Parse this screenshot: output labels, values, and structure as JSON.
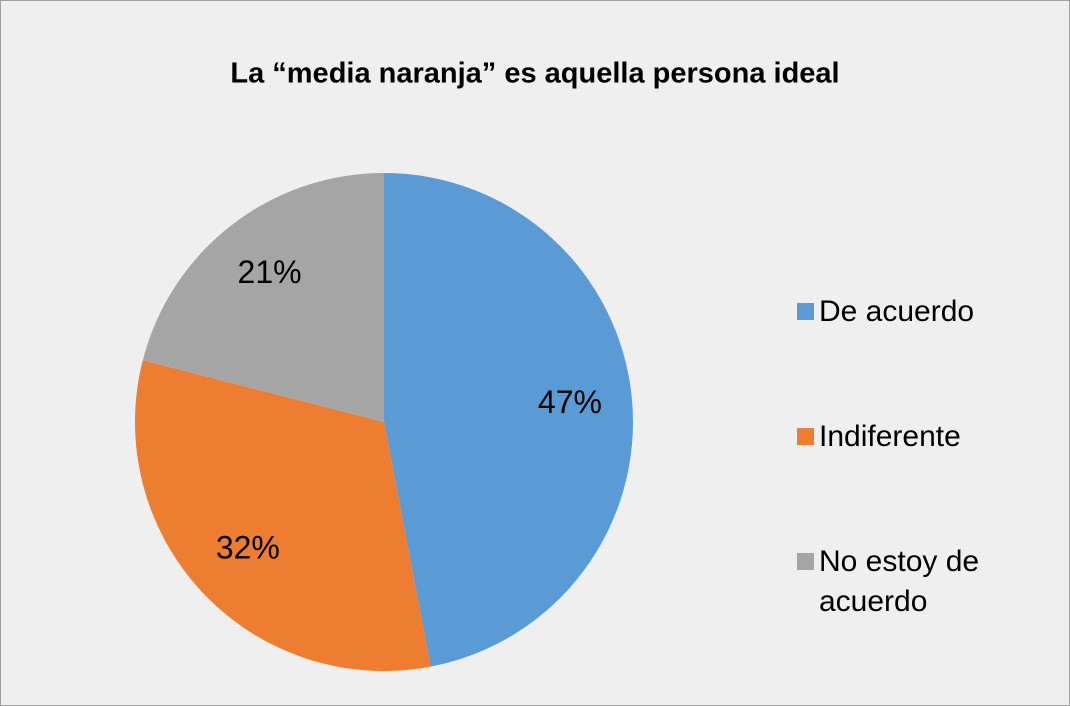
{
  "chart_data": {
    "type": "pie",
    "title": "La “media naranja” es aquella persona ideal",
    "categories": [
      "De acuerdo",
      "Indiferente",
      "No estoy de acuerdo"
    ],
    "values": [
      47,
      32,
      21
    ],
    "value_labels": [
      "47%",
      "32%",
      "21%"
    ],
    "colors": [
      "#5b9bd5",
      "#ed7d31",
      "#a5a5a5"
    ],
    "legend": "right"
  }
}
